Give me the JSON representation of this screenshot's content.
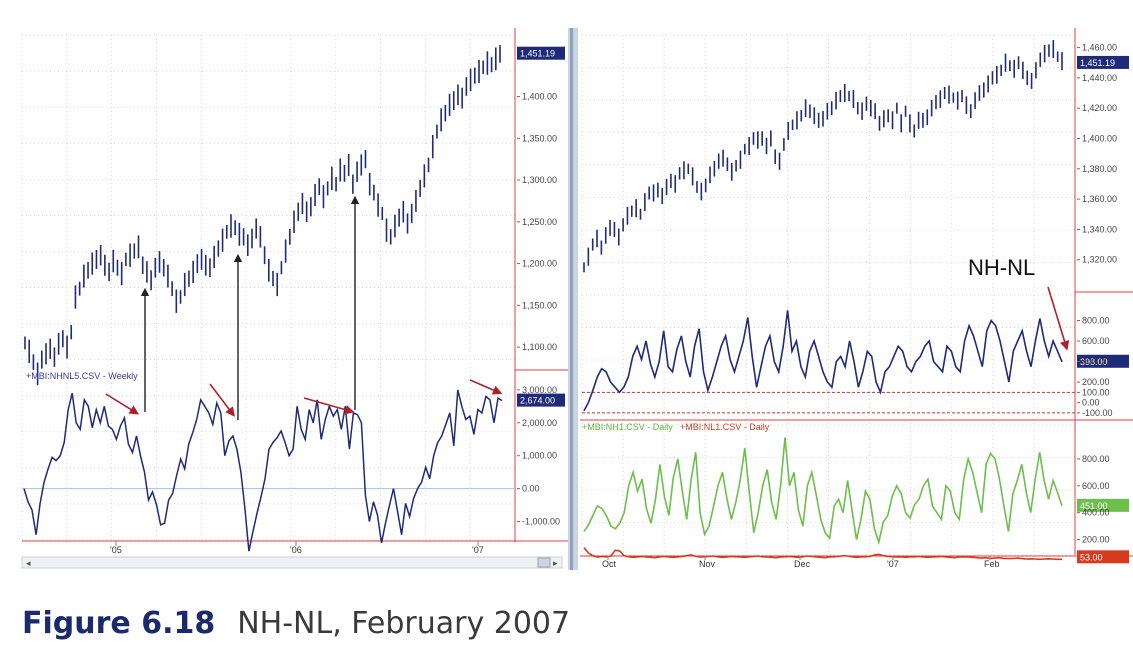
{
  "caption": {
    "figure_number": "Figure 6.18",
    "title": "NH-NL, February 2007"
  },
  "chart_data": [
    {
      "type": "bar",
      "panel": "S&P 500 weekly bars",
      "x_ticks": [
        "'05",
        "'06",
        "'07"
      ],
      "ylim": [
        1075,
        1470
      ],
      "y_ticks": [
        "1,100.00",
        "1,150.00",
        "1,200.00",
        "1,250.00",
        "1,300.00",
        "1,350.00",
        "1,400.00"
      ],
      "last_value_label": "1,451.19",
      "closes": [
        1105,
        1095,
        1082,
        1068,
        1085,
        1092,
        1098,
        1088,
        1104,
        1110,
        1100,
        1118,
        1160,
        1170,
        1185,
        1192,
        1200,
        1205,
        1210,
        1198,
        1190,
        1203,
        1195,
        1188,
        1205,
        1210,
        1215,
        1220,
        1198,
        1190,
        1180,
        1195,
        1202,
        1195,
        1185,
        1170,
        1155,
        1160,
        1175,
        1182,
        1190,
        1200,
        1205,
        1198,
        1195,
        1208,
        1218,
        1228,
        1238,
        1245,
        1243,
        1235,
        1232,
        1222,
        1230,
        1242,
        1232,
        1210,
        1192,
        1182,
        1175,
        1195,
        1215,
        1232,
        1250,
        1262,
        1272,
        1262,
        1268,
        1282,
        1292,
        1280,
        1290,
        1302,
        1295,
        1312,
        1308,
        1318,
        1295,
        1310,
        1318,
        1325,
        1295,
        1285,
        1270,
        1260,
        1240,
        1232,
        1245,
        1255,
        1262,
        1248,
        1260,
        1275,
        1290,
        1305,
        1318,
        1340,
        1358,
        1372,
        1380,
        1390,
        1395,
        1402,
        1398,
        1412,
        1420,
        1425,
        1430,
        1435,
        1440,
        1438,
        1445,
        1451
      ]
    },
    {
      "type": "line",
      "panel": "NH-NL weekly",
      "series_label": "+MBI:NHNL5.CSV - Weekly",
      "ylim": [
        -1500,
        3300
      ],
      "y_ticks": [
        "-1,000.00",
        "0.00",
        "1,000.00",
        "2,000.00",
        "3,000.00"
      ],
      "last_value_label": "2,674.00",
      "values": [
        0,
        -400,
        -650,
        -1400,
        -450,
        200,
        600,
        950,
        850,
        1000,
        1400,
        2400,
        2900,
        2000,
        1800,
        2700,
        2500,
        1850,
        2400,
        2000,
        2500,
        1900,
        1800,
        1500,
        1900,
        2150,
        1350,
        1100,
        1600,
        1000,
        500,
        -350,
        -100,
        -500,
        -1100,
        -1050,
        -350,
        -150,
        400,
        900,
        600,
        1350,
        1700,
        2100,
        2700,
        2500,
        2300,
        1950,
        2600,
        2300,
        1000,
        1450,
        1600,
        1200,
        500,
        -600,
        -1900,
        -1300,
        -750,
        -250,
        300,
        1200,
        1400,
        1550,
        1750,
        1400,
        1000,
        1200,
        2500,
        1800,
        1500,
        2400,
        2000,
        2700,
        1500,
        2100,
        2500,
        2200,
        2400,
        1800,
        2500,
        1200,
        2300,
        2250,
        2000,
        -200,
        -1000,
        -400,
        -800,
        -1650,
        -1050,
        -500,
        0,
        -700,
        -1400,
        -450,
        -850,
        -300,
        0,
        200,
        650,
        300,
        1000,
        1400,
        1600,
        1950,
        2300,
        1300,
        3000,
        2500,
        2100,
        2200,
        1650,
        2400,
        2300,
        2800,
        2700,
        2000,
        2750,
        2674
      ]
    },
    {
      "type": "bar",
      "panel": "S&P 500 daily bars",
      "x_ticks": [
        "Oct",
        "Nov",
        "Dec",
        "'07",
        "Feb"
      ],
      "ylim": [
        1300,
        1465
      ],
      "y_ticks": [
        "1,320.00",
        "1,340.00",
        "1,360.00",
        "1,380.00",
        "1,400.00",
        "1,420.00",
        "1,440.00",
        "1,460.00"
      ],
      "last_value_label": "1,451.19",
      "closes": [
        1315,
        1322,
        1330,
        1334,
        1328,
        1336,
        1341,
        1340,
        1335,
        1343,
        1349,
        1352,
        1354,
        1350,
        1358,
        1364,
        1364,
        1366,
        1362,
        1368,
        1372,
        1370,
        1377,
        1379,
        1380,
        1375,
        1368,
        1365,
        1369,
        1376,
        1380,
        1385,
        1387,
        1383,
        1378,
        1382,
        1386,
        1393,
        1395,
        1400,
        1399,
        1400,
        1395,
        1400,
        1388,
        1385,
        1396,
        1405,
        1409,
        1412,
        1415,
        1420,
        1418,
        1415,
        1412,
        1413,
        1418,
        1420,
        1425,
        1428,
        1430,
        1428,
        1426,
        1420,
        1418,
        1423,
        1420,
        1418,
        1410,
        1413,
        1415,
        1412,
        1420,
        1410,
        1418,
        1410,
        1405,
        1412,
        1412,
        1414,
        1420,
        1424,
        1426,
        1430,
        1429,
        1427,
        1425,
        1428,
        1422,
        1418,
        1425,
        1430,
        1432,
        1436,
        1440,
        1442,
        1445,
        1450,
        1448,
        1446,
        1450,
        1445,
        1440,
        1438,
        1445,
        1452,
        1456,
        1458,
        1459,
        1454,
        1451
      ]
    },
    {
      "type": "line",
      "panel": "NH-NL daily",
      "series_label": "NH-NL",
      "ylim": [
        -150,
        1000
      ],
      "y_ticks": [
        "-100.00",
        "0.00",
        "100.00",
        "200.00",
        "400.00",
        "600.00",
        "800.00"
      ],
      "last_value_label": "398.00",
      "values": [
        -80,
        0,
        120,
        250,
        330,
        300,
        200,
        150,
        100,
        150,
        250,
        450,
        550,
        420,
        600,
        380,
        250,
        400,
        700,
        350,
        300,
        520,
        650,
        400,
        250,
        550,
        720,
        300,
        120,
        250,
        400,
        550,
        650,
        420,
        300,
        450,
        600,
        830,
        450,
        150,
        350,
        550,
        650,
        400,
        300,
        550,
        900,
        500,
        600,
        350,
        250,
        500,
        600,
        450,
        300,
        200,
        150,
        400,
        450,
        350,
        600,
        400,
        150,
        300,
        500,
        450,
        200,
        100,
        300,
        350,
        450,
        550,
        500,
        350,
        300,
        400,
        450,
        550,
        600,
        400,
        350,
        300,
        550,
        500,
        350,
        300,
        600,
        750,
        650,
        500,
        350,
        700,
        800,
        750,
        600,
        400,
        200,
        500,
        600,
        700,
        500,
        350,
        600,
        820,
        600,
        450,
        600,
        500,
        398
      ]
    },
    {
      "type": "line",
      "panel": "New highs / new lows daily",
      "legend": [
        "+MBI:NH1.CSV - Daily",
        "+MBI:NL1.CSV - Daily"
      ],
      "ylim": [
        100,
        1000
      ],
      "y_ticks": [
        "200.00",
        "400.00",
        "600.00",
        "800.00"
      ],
      "last_value_labels": [
        "451.00",
        "53.00"
      ],
      "series": [
        {
          "name": "+MBI:NH1.CSV - Daily",
          "color": "#6dbf4b",
          "values": [
            260,
            310,
            380,
            450,
            430,
            380,
            300,
            280,
            320,
            400,
            600,
            700,
            560,
            650,
            430,
            320,
            500,
            760,
            520,
            380,
            660,
            800,
            560,
            350,
            650,
            850,
            400,
            240,
            300,
            450,
            600,
            700,
            500,
            350,
            480,
            650,
            880,
            550,
            250,
            400,
            600,
            720,
            480,
            350,
            600,
            960,
            600,
            700,
            420,
            300,
            600,
            700,
            530,
            350,
            250,
            210,
            450,
            500,
            400,
            640,
            420,
            200,
            350,
            560,
            500,
            280,
            180,
            330,
            380,
            520,
            600,
            540,
            400,
            360,
            460,
            500,
            600,
            650,
            450,
            400,
            350,
            600,
            560,
            400,
            350,
            650,
            800,
            700,
            550,
            400,
            760,
            840,
            800,
            650,
            450,
            260,
            540,
            640,
            760,
            550,
            400,
            650,
            850,
            640,
            500,
            640,
            550,
            451
          ]
        },
        {
          "name": "+MBI:NL1.CSV - Daily",
          "color": "#d63a1f",
          "values": [
            140,
            100,
            80,
            70,
            75,
            70,
            78,
            120,
            115,
            80,
            72,
            68,
            70,
            75,
            70,
            68,
            65,
            72,
            75,
            70,
            68,
            70,
            75,
            80,
            85,
            75,
            70,
            72,
            75,
            78,
            70,
            68,
            70,
            75,
            72,
            70,
            68,
            72,
            75,
            78,
            72,
            70,
            68,
            65,
            70,
            72,
            75,
            70,
            68,
            72,
            78,
            75,
            70,
            68,
            65,
            70,
            72,
            75,
            80,
            78,
            72,
            68,
            70,
            72,
            75,
            85,
            90,
            80,
            75,
            72,
            70,
            72,
            68,
            70,
            72,
            75,
            70,
            68,
            70,
            72,
            75,
            70,
            68,
            65,
            70,
            72,
            70,
            68,
            65,
            62,
            65,
            60,
            62,
            65,
            60,
            58,
            60,
            62,
            58,
            55,
            57,
            55,
            53,
            55,
            57,
            55,
            53,
            53
          ]
        }
      ]
    }
  ],
  "annotation": {
    "label": "NH-NL"
  }
}
